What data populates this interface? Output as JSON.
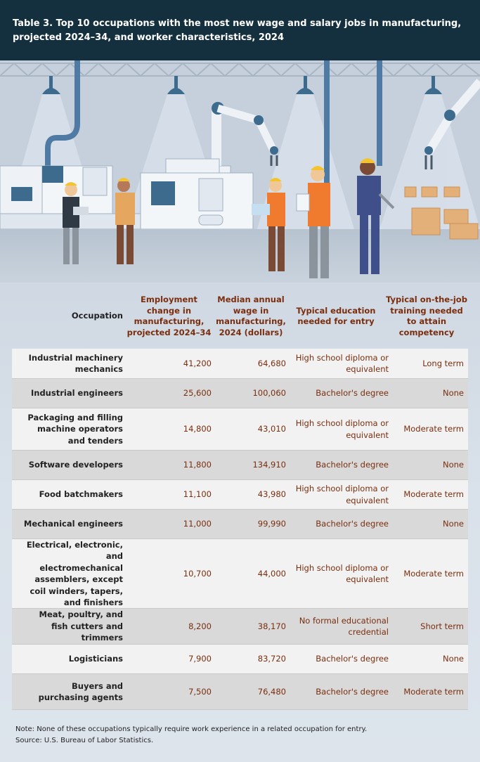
{
  "title": "Table 3. Top 10 occupations with the most new wage and salary jobs in manufacturing, projected 2024–34, and worker characteristics, 2024",
  "columns": {
    "occupation": "Occupation",
    "employment": "Employment change in manufacturing, projected 2024–34",
    "wage": "Median annual wage in manufacturing, 2024 (dollars)",
    "education": "Typical education needed for entry",
    "training": "Typical on-the-job training needed to attain competency"
  },
  "rows": [
    {
      "occupation": "Industrial machinery mechanics",
      "employment": "41,200",
      "wage": "64,680",
      "education": "High school diploma or equivalent",
      "training": "Long term"
    },
    {
      "occupation": "Industrial engineers",
      "employment": "25,600",
      "wage": "100,060",
      "education": "Bachelor's degree",
      "training": "None"
    },
    {
      "occupation": "Packaging and filling machine operators and tenders",
      "employment": "14,800",
      "wage": "43,010",
      "education": "High school diploma or equivalent",
      "training": "Moderate term"
    },
    {
      "occupation": "Software developers",
      "employment": "11,800",
      "wage": "134,910",
      "education": "Bachelor's degree",
      "training": "None"
    },
    {
      "occupation": "Food batchmakers",
      "employment": "11,100",
      "wage": "43,980",
      "education": "High school diploma or equivalent",
      "training": "Moderate term"
    },
    {
      "occupation": "Mechanical engineers",
      "employment": "11,000",
      "wage": "99,990",
      "education": "Bachelor's degree",
      "training": "None"
    },
    {
      "occupation": "Electrical, electronic, and electromechanical assemblers, except coil winders, tapers, and finishers",
      "employment": "10,700",
      "wage": "44,000",
      "education": "High school diploma or equivalent",
      "training": "Moderate term"
    },
    {
      "occupation": "Meat, poultry, and fish cutters and trimmers",
      "employment": "8,200",
      "wage": "38,170",
      "education": "No formal educational credential",
      "training": "Short term"
    },
    {
      "occupation": "Logisticians",
      "employment": "7,900",
      "wage": "83,720",
      "education": "Bachelor's degree",
      "training": "None"
    },
    {
      "occupation": "Buyers and purchasing agents",
      "employment": "7,500",
      "wage": "76,480",
      "education": "Bachelor's degree",
      "training": "Moderate term"
    }
  ],
  "footer": {
    "note": "Note: None of these occupations typically require work experience in a related occupation for entry.",
    "source": "Source: U.S. Bureau of Labor Statistics."
  },
  "colors": {
    "title_bg": "#14303f",
    "accent_text": "#7a2e0e",
    "row_light": "#f2f2f2",
    "row_dark": "#d9d9d9"
  }
}
